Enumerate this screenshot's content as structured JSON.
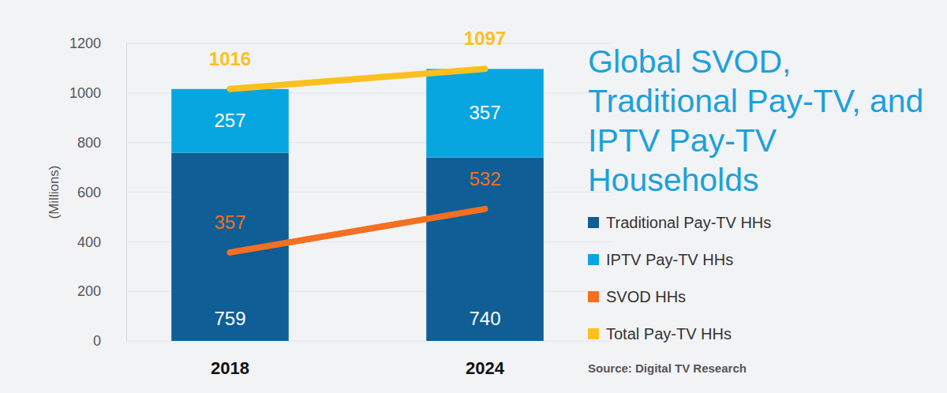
{
  "chart_data": {
    "type": "bar",
    "title": "Global SVOD, Traditional Pay-TV, and IPTV Pay-TV Households",
    "y_label": "(Millions)",
    "categories": [
      "2018",
      "2024"
    ],
    "series": [
      {
        "name": "Traditional Pay-TV HHs",
        "color": "#0f5e96",
        "values": [
          759,
          740
        ]
      },
      {
        "name": "IPTV Pay-TV HHs",
        "color": "#08a6e0",
        "values": [
          257,
          357
        ]
      },
      {
        "name": "SVOD HHs",
        "type": "line",
        "color": "#f36f21",
        "values": [
          357,
          532
        ]
      },
      {
        "name": "Total Pay-TV HHs",
        "type": "line",
        "color": "#fcc01e",
        "values": [
          1016,
          1097
        ]
      }
    ],
    "stacked": true,
    "data_labels": true,
    "ylim": [
      0,
      1200
    ],
    "yticks": [
      0,
      200,
      400,
      600,
      800,
      1000,
      1200
    ],
    "grid": true,
    "legend": "right",
    "annotations": [
      "Source: Digital TV Research"
    ]
  }
}
